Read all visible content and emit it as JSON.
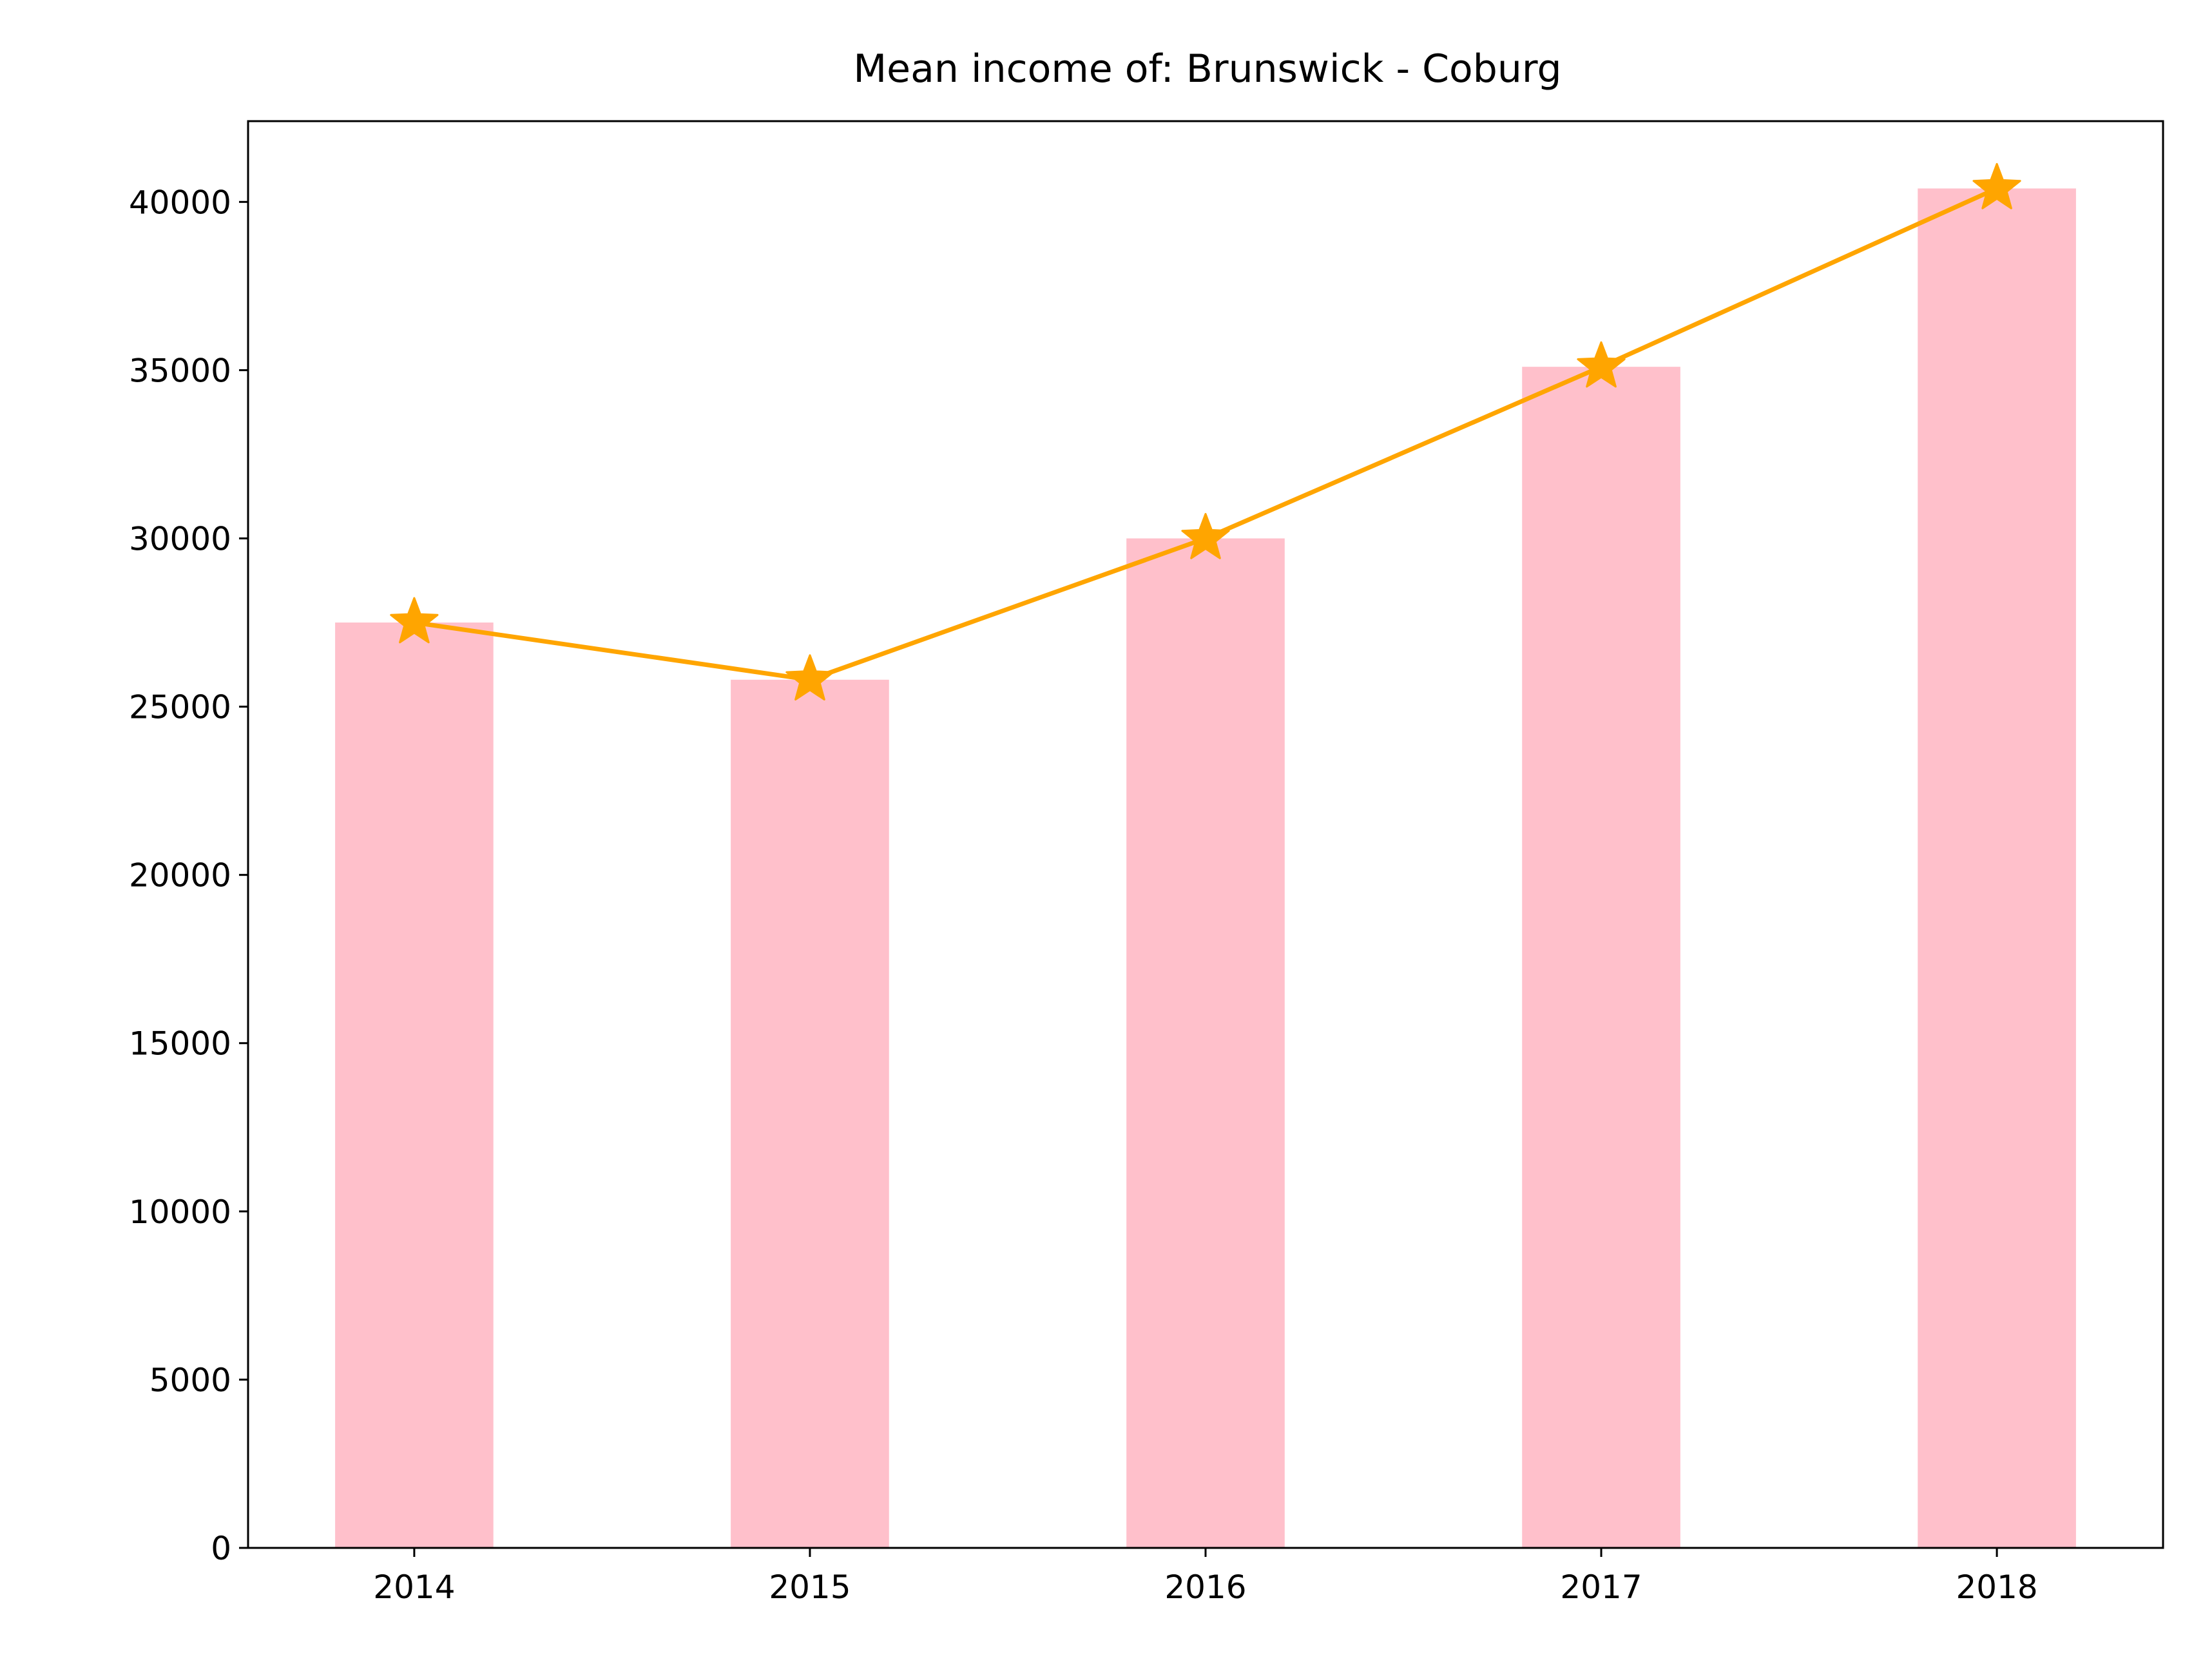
{
  "chart_data": {
    "type": "bar",
    "title": "Mean income of: Brunswick - Coburg",
    "xlabel": "",
    "ylabel": "",
    "categories": [
      "2014",
      "2015",
      "2016",
      "2017",
      "2018"
    ],
    "values": [
      27500,
      25800,
      30000,
      35100,
      40400
    ],
    "overlay_line": {
      "values": [
        27500,
        25800,
        30000,
        35100,
        40400
      ],
      "marker": "star"
    },
    "ylim": [
      0,
      42400
    ],
    "yticks": [
      0,
      5000,
      10000,
      15000,
      20000,
      25000,
      30000,
      35000,
      40000
    ],
    "grid": false,
    "legend": "none",
    "colors": {
      "bar": "#ffc0cb",
      "line": "#ffa500",
      "axes": "#000000",
      "background": "#ffffff"
    }
  }
}
